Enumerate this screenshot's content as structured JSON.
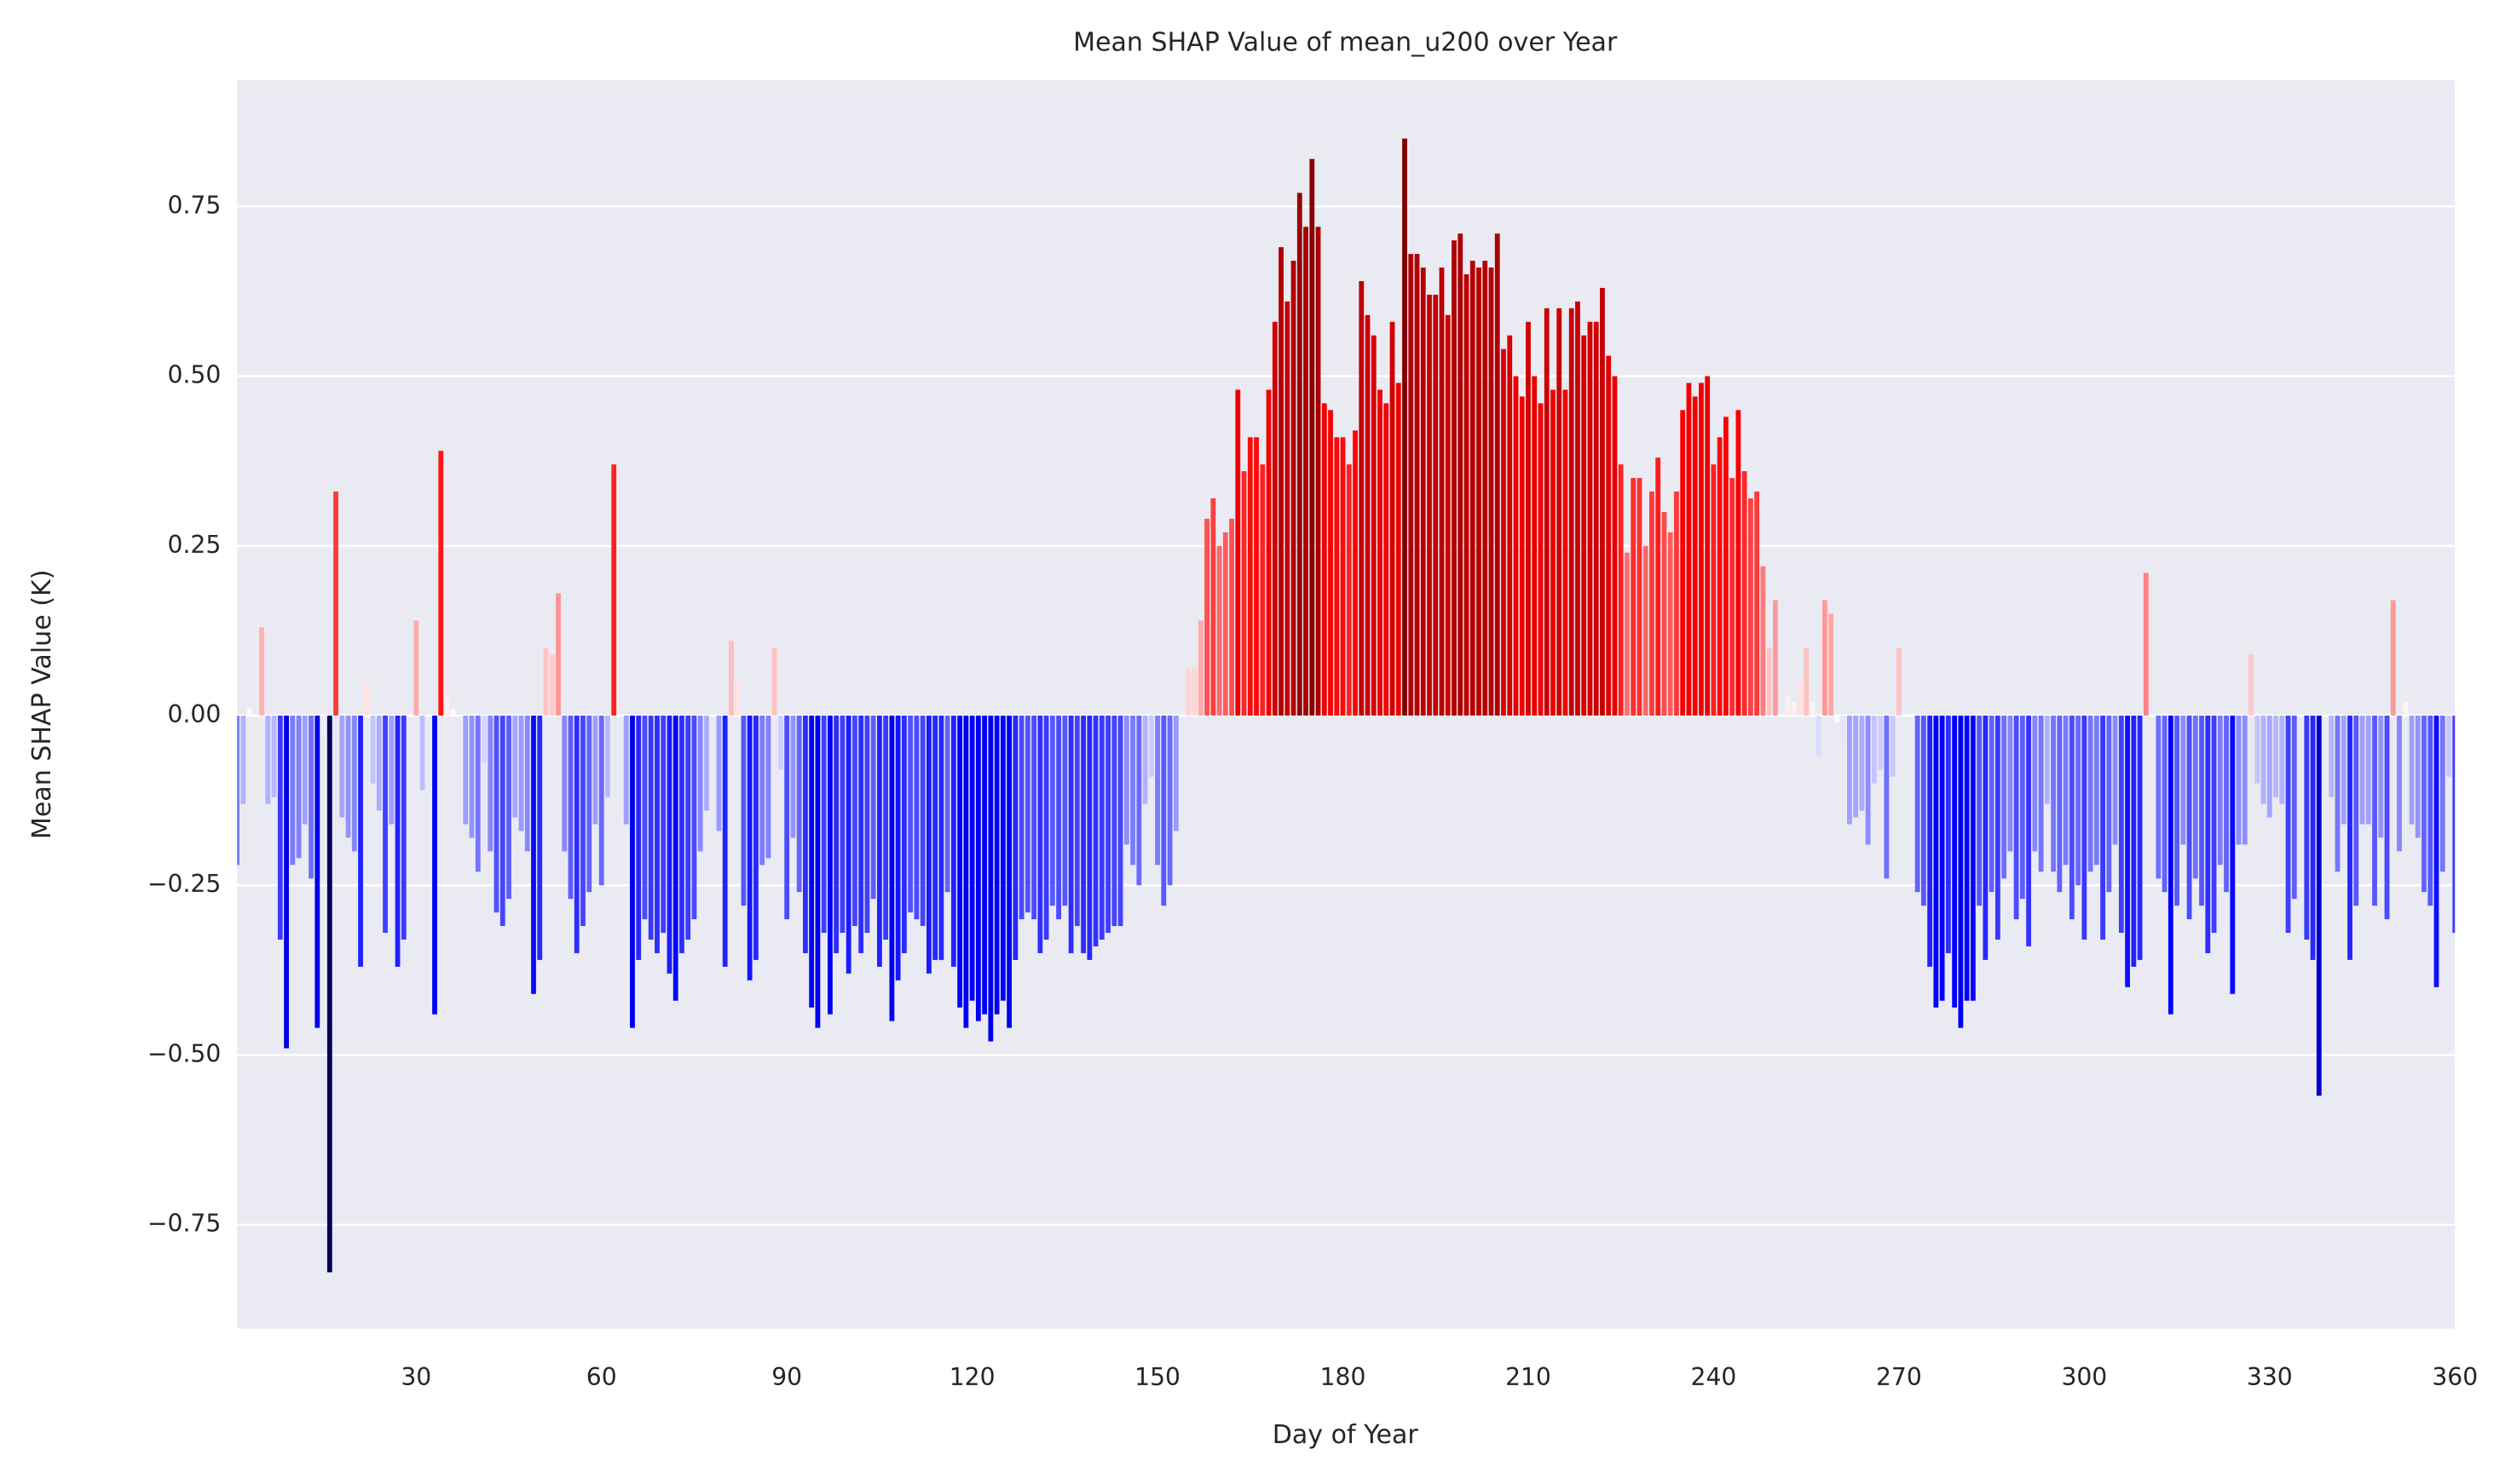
{
  "chart_data": {
    "type": "bar",
    "title": "Mean SHAP Value of mean_u200 over Year",
    "xlabel": "Day of Year",
    "ylabel": "Mean SHAP Value (K)",
    "colormap": "seismic",
    "grid": true,
    "xlim": [
      1,
      360
    ],
    "ylim": [
      -0.903,
      0.936
    ],
    "xticks": [
      30,
      60,
      90,
      120,
      150,
      180,
      210,
      240,
      270,
      300,
      330,
      360
    ],
    "yticks": [
      {
        "value": -0.75,
        "label": "−0.75"
      },
      {
        "value": -0.5,
        "label": "−0.50"
      },
      {
        "value": -0.25,
        "label": "−0.25"
      },
      {
        "value": 0,
        "label": "0.00"
      },
      0.25,
      {
        "value": 0.5,
        "label": "0.50"
      },
      0.75
    ],
    "x": [
      1,
      2,
      3,
      4,
      5,
      6,
      7,
      8,
      9,
      10,
      11,
      12,
      13,
      14,
      15,
      16,
      17,
      18,
      19,
      20,
      21,
      22,
      23,
      24,
      25,
      26,
      27,
      28,
      29,
      30,
      31,
      32,
      33,
      34,
      35,
      36,
      37,
      38,
      39,
      40,
      41,
      42,
      43,
      44,
      45,
      46,
      47,
      48,
      49,
      50,
      51,
      52,
      53,
      54,
      55,
      56,
      57,
      58,
      59,
      60,
      61,
      62,
      63,
      64,
      65,
      66,
      67,
      68,
      69,
      70,
      71,
      72,
      73,
      74,
      75,
      76,
      77,
      78,
      79,
      80,
      81,
      82,
      83,
      84,
      85,
      86,
      87,
      88,
      89,
      90,
      91,
      92,
      93,
      94,
      95,
      96,
      97,
      98,
      99,
      100,
      101,
      102,
      103,
      104,
      105,
      106,
      107,
      108,
      109,
      110,
      111,
      112,
      113,
      114,
      115,
      116,
      117,
      118,
      119,
      120,
      121,
      122,
      123,
      124,
      125,
      126,
      127,
      128,
      129,
      130,
      131,
      132,
      133,
      134,
      135,
      136,
      137,
      138,
      139,
      140,
      141,
      142,
      143,
      144,
      145,
      146,
      147,
      148,
      149,
      150,
      151,
      152,
      153,
      154,
      155,
      156,
      157,
      158,
      159,
      160,
      161,
      162,
      163,
      164,
      165,
      166,
      167,
      168,
      169,
      170,
      171,
      172,
      173,
      174,
      175,
      176,
      177,
      178,
      179,
      180,
      181,
      182,
      183,
      184,
      185,
      186,
      187,
      188,
      189,
      190,
      191,
      192,
      193,
      194,
      195,
      196,
      197,
      198,
      199,
      200,
      201,
      202,
      203,
      204,
      205,
      206,
      207,
      208,
      209,
      210,
      211,
      212,
      213,
      214,
      215,
      216,
      217,
      218,
      219,
      220,
      221,
      222,
      223,
      224,
      225,
      226,
      227,
      228,
      229,
      230,
      231,
      232,
      233,
      234,
      235,
      236,
      237,
      238,
      239,
      240,
      241,
      242,
      243,
      244,
      245,
      246,
      247,
      248,
      249,
      250,
      251,
      252,
      253,
      254,
      255,
      256,
      257,
      258,
      259,
      260,
      261,
      262,
      263,
      264,
      265,
      266,
      267,
      268,
      269,
      270,
      271,
      272,
      273,
      274,
      275,
      276,
      277,
      278,
      279,
      280,
      281,
      282,
      283,
      284,
      285,
      286,
      287,
      288,
      289,
      290,
      291,
      292,
      293,
      294,
      295,
      296,
      297,
      298,
      299,
      300,
      301,
      302,
      303,
      304,
      305,
      306,
      307,
      308,
      309,
      310,
      311,
      312,
      313,
      314,
      315,
      316,
      317,
      318,
      319,
      320,
      321,
      322,
      323,
      324,
      325,
      326,
      327,
      328,
      329,
      330,
      331,
      332,
      333,
      334,
      335,
      336,
      337,
      338,
      339,
      340,
      341,
      342,
      343,
      344,
      345,
      346,
      347,
      348,
      349,
      350,
      351,
      352,
      353,
      354,
      355,
      356,
      357,
      358,
      359,
      360
    ],
    "values": [
      -0.22,
      -0.13,
      0.01,
      0.0,
      0.13,
      -0.13,
      -0.12,
      -0.33,
      -0.49,
      -0.22,
      -0.21,
      -0.16,
      -0.24,
      -0.46,
      -0.03,
      -0.82,
      0.33,
      -0.15,
      -0.18,
      -0.2,
      -0.37,
      0.05,
      -0.1,
      -0.14,
      -0.32,
      -0.16,
      -0.37,
      -0.33,
      0.0,
      0.14,
      -0.11,
      0.0,
      -0.44,
      0.39,
      0.03,
      0.01,
      0.0,
      -0.16,
      -0.18,
      -0.23,
      -0.07,
      -0.2,
      -0.29,
      -0.31,
      -0.27,
      -0.15,
      -0.17,
      -0.2,
      -0.41,
      -0.36,
      0.1,
      0.09,
      0.18,
      -0.2,
      -0.27,
      -0.35,
      -0.31,
      -0.26,
      -0.16,
      -0.25,
      -0.12,
      0.37,
      0.0,
      -0.16,
      -0.46,
      -0.36,
      -0.3,
      -0.33,
      -0.35,
      -0.32,
      -0.38,
      -0.42,
      -0.35,
      -0.33,
      -0.3,
      -0.2,
      -0.14,
      0.0,
      -0.17,
      -0.37,
      0.11,
      0.05,
      -0.28,
      -0.39,
      -0.36,
      -0.22,
      -0.21,
      0.1,
      -0.08,
      -0.3,
      -0.18,
      -0.26,
      -0.35,
      -0.43,
      -0.46,
      -0.32,
      -0.44,
      -0.35,
      -0.32,
      -0.38,
      -0.31,
      -0.35,
      -0.32,
      -0.27,
      -0.37,
      -0.33,
      -0.45,
      -0.39,
      -0.35,
      -0.29,
      -0.3,
      -0.31,
      -0.38,
      -0.36,
      -0.36,
      -0.26,
      -0.37,
      -0.43,
      -0.46,
      -0.42,
      -0.45,
      -0.44,
      -0.48,
      -0.44,
      -0.42,
      -0.46,
      -0.36,
      -0.3,
      -0.29,
      -0.3,
      -0.35,
      -0.33,
      -0.28,
      -0.3,
      -0.28,
      -0.35,
      -0.31,
      -0.35,
      -0.36,
      -0.34,
      -0.33,
      -0.32,
      -0.31,
      -0.31,
      -0.19,
      -0.22,
      -0.25,
      -0.13,
      -0.09,
      -0.22,
      -0.28,
      -0.25,
      -0.17,
      0.0,
      0.07,
      0.07,
      0.14,
      0.29,
      0.32,
      0.25,
      0.27,
      0.29,
      0.48,
      0.36,
      0.41,
      0.41,
      0.37,
      0.48,
      0.58,
      0.69,
      0.61,
      0.67,
      0.77,
      0.72,
      0.82,
      0.72,
      0.46,
      0.45,
      0.41,
      0.41,
      0.37,
      0.42,
      0.64,
      0.59,
      0.56,
      0.48,
      0.46,
      0.58,
      0.49,
      0.85,
      0.68,
      0.68,
      0.66,
      0.62,
      0.62,
      0.66,
      0.59,
      0.7,
      0.71,
      0.65,
      0.67,
      0.66,
      0.67,
      0.66,
      0.71,
      0.54,
      0.56,
      0.5,
      0.47,
      0.58,
      0.5,
      0.46,
      0.6,
      0.48,
      0.6,
      0.48,
      0.6,
      0.61,
      0.56,
      0.58,
      0.58,
      0.63,
      0.53,
      0.5,
      0.37,
      0.24,
      0.35,
      0.35,
      0.25,
      0.33,
      0.38,
      0.3,
      0.27,
      0.33,
      0.45,
      0.49,
      0.47,
      0.49,
      0.5,
      0.37,
      0.41,
      0.44,
      0.35,
      0.45,
      0.36,
      0.32,
      0.33,
      0.22,
      0.1,
      0.17,
      0.0,
      0.03,
      0.02,
      0.05,
      0.1,
      0.02,
      -0.06,
      0.17,
      0.15,
      -0.01,
      -0.04,
      -0.16,
      -0.15,
      -0.14,
      -0.19,
      -0.1,
      -0.08,
      -0.24,
      -0.09,
      0.1,
      0.0,
      0.0,
      -0.26,
      -0.28,
      -0.37,
      -0.43,
      -0.42,
      -0.35,
      -0.43,
      -0.46,
      -0.42,
      -0.42,
      -0.28,
      -0.36,
      -0.26,
      -0.33,
      -0.24,
      -0.2,
      -0.3,
      -0.27,
      -0.34,
      -0.2,
      -0.23,
      -0.13,
      -0.23,
      -0.26,
      -0.22,
      -0.3,
      -0.25,
      -0.33,
      -0.23,
      -0.22,
      -0.33,
      -0.26,
      -0.19,
      -0.32,
      -0.4,
      -0.37,
      -0.36,
      0.21,
      0.0,
      -0.24,
      -0.26,
      -0.44,
      -0.28,
      -0.19,
      -0.3,
      -0.24,
      -0.28,
      -0.35,
      -0.32,
      -0.22,
      -0.26,
      -0.41,
      -0.19,
      -0.19,
      0.09,
      -0.1,
      -0.13,
      -0.15,
      -0.12,
      -0.13,
      -0.32,
      -0.27,
      0.0,
      -0.33,
      -0.36,
      -0.56,
      0.0,
      -0.12,
      -0.23,
      -0.16,
      -0.36,
      -0.28,
      -0.16,
      -0.16,
      -0.28,
      -0.18,
      -0.3,
      0.17,
      -0.2,
      0.02,
      -0.16,
      -0.18,
      -0.26,
      -0.28,
      -0.4,
      -0.23,
      -0.09,
      -0.32
    ]
  }
}
